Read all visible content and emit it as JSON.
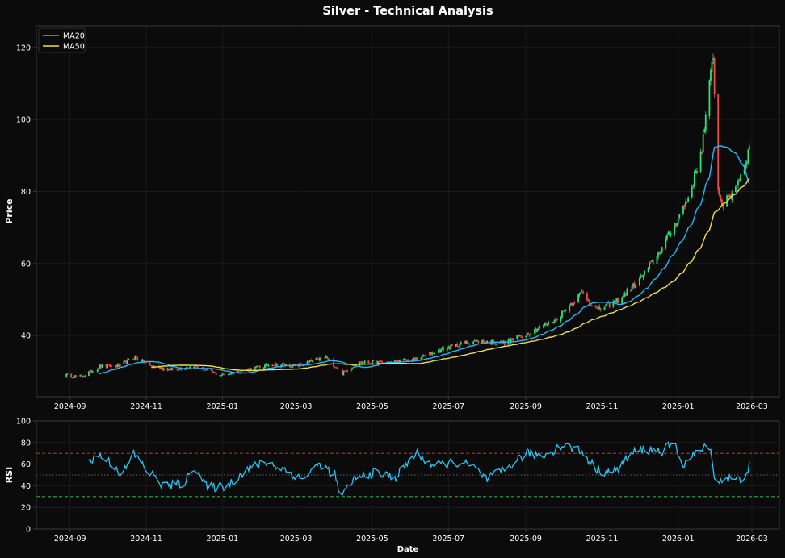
{
  "title": "Silver - Technical Analysis",
  "colors": {
    "background": "#0b0b0b",
    "axes_bg": "#0b0b0b",
    "frame": "#3a3a3a",
    "grid": "#1e1e1e",
    "text": "#ffffff",
    "up": "#2ee07a",
    "down": "#f04a4a",
    "ma20": "#29b6f6",
    "ma50": "#f0e040",
    "rsi": "#29c5f6",
    "overbought": "#e53935",
    "oversold": "#2ecc71",
    "midline": "#666666"
  },
  "chart_data": [
    {
      "type": "candlestick",
      "ylabel": "Price",
      "ylim": [
        23,
        126
      ],
      "yticks": [
        40,
        60,
        80,
        100,
        120
      ],
      "xlim": [
        "2024-08-05",
        "2026-03-23"
      ],
      "xticks": [
        "2024-09",
        "2024-11",
        "2025-01",
        "2025-03",
        "2025-05",
        "2025-07",
        "2025-09",
        "2025-11",
        "2026-01",
        "2026-03"
      ],
      "grid": true,
      "legend_position": "top-left",
      "date_range": [
        "2024-08-28",
        "2026-02-27"
      ],
      "price_anchors": [
        [
          "2024-08-28",
          29
        ],
        [
          "2024-09-10",
          28.5
        ],
        [
          "2024-09-25",
          31.5
        ],
        [
          "2024-10-10",
          31.5
        ],
        [
          "2024-10-23",
          34
        ],
        [
          "2024-11-05",
          31.5
        ],
        [
          "2024-11-20",
          30.5
        ],
        [
          "2024-12-10",
          31.5
        ],
        [
          "2024-12-30",
          29
        ],
        [
          "2025-01-20",
          30.5
        ],
        [
          "2025-02-10",
          32
        ],
        [
          "2025-03-01",
          31.5
        ],
        [
          "2025-03-25",
          34
        ],
        [
          "2025-04-07",
          29.5
        ],
        [
          "2025-04-20",
          32.5
        ],
        [
          "2025-05-15",
          32.5
        ],
        [
          "2025-06-05",
          33.5
        ],
        [
          "2025-06-25",
          36
        ],
        [
          "2025-07-20",
          38.5
        ],
        [
          "2025-08-15",
          38
        ],
        [
          "2025-09-05",
          41
        ],
        [
          "2025-09-25",
          44.5
        ],
        [
          "2025-10-16",
          52
        ],
        [
          "2025-10-28",
          47
        ],
        [
          "2025-11-15",
          50
        ],
        [
          "2025-11-30",
          55
        ],
        [
          "2025-12-15",
          62
        ],
        [
          "2025-12-31",
          72
        ],
        [
          "2026-01-10",
          79
        ],
        [
          "2026-01-20",
          92
        ],
        [
          "2026-01-29",
          118
        ],
        [
          "2026-02-02",
          80
        ],
        [
          "2026-02-06",
          76
        ],
        [
          "2026-02-14",
          80
        ],
        [
          "2026-02-22",
          86
        ],
        [
          "2026-02-27",
          92
        ]
      ],
      "series": [
        {
          "name": "MA20",
          "color": "#29b6f6"
        },
        {
          "name": "MA50",
          "color": "#f0e040"
        }
      ]
    },
    {
      "type": "line",
      "ylabel": "RSI",
      "xlabel": "Date",
      "ylim": [
        0,
        100
      ],
      "yticks": [
        0,
        20,
        40,
        60,
        80,
        100
      ],
      "levels": [
        {
          "value": 70,
          "color": "#e53935",
          "style": "dashed"
        },
        {
          "value": 50,
          "color": "#666666",
          "style": "dotted"
        },
        {
          "value": 30,
          "color": "#2ecc71",
          "style": "dashed"
        }
      ],
      "rsi_anchors": [
        [
          "2024-09-16",
          63
        ],
        [
          "2024-09-25",
          68
        ],
        [
          "2024-10-05",
          60
        ],
        [
          "2024-10-13",
          50
        ],
        [
          "2024-10-22",
          70
        ],
        [
          "2024-11-01",
          55
        ],
        [
          "2024-11-15",
          40
        ],
        [
          "2024-12-01",
          42
        ],
        [
          "2024-12-10",
          58
        ],
        [
          "2024-12-20",
          38
        ],
        [
          "2025-01-05",
          40
        ],
        [
          "2025-01-20",
          55
        ],
        [
          "2025-02-05",
          62
        ],
        [
          "2025-02-20",
          55
        ],
        [
          "2025-03-05",
          46
        ],
        [
          "2025-03-20",
          60
        ],
        [
          "2025-04-01",
          50
        ],
        [
          "2025-04-06",
          28
        ],
        [
          "2025-04-15",
          45
        ],
        [
          "2025-05-01",
          52
        ],
        [
          "2025-05-20",
          48
        ],
        [
          "2025-06-05",
          70
        ],
        [
          "2025-06-20",
          58
        ],
        [
          "2025-07-05",
          62
        ],
        [
          "2025-07-20",
          58
        ],
        [
          "2025-08-01",
          46
        ],
        [
          "2025-08-15",
          55
        ],
        [
          "2025-09-01",
          70
        ],
        [
          "2025-09-15",
          68
        ],
        [
          "2025-10-01",
          78
        ],
        [
          "2025-10-15",
          72
        ],
        [
          "2025-10-28",
          55
        ],
        [
          "2025-11-10",
          52
        ],
        [
          "2025-11-25",
          70
        ],
        [
          "2025-12-05",
          74
        ],
        [
          "2025-12-20",
          72
        ],
        [
          "2025-12-28",
          80
        ],
        [
          "2026-01-05",
          60
        ],
        [
          "2026-01-15",
          70
        ],
        [
          "2026-01-27",
          78
        ],
        [
          "2026-01-30",
          44
        ],
        [
          "2026-02-10",
          47
        ],
        [
          "2026-02-20",
          45
        ],
        [
          "2026-02-27",
          58
        ]
      ],
      "series": [
        {
          "name": "RSI",
          "color": "#29c5f6"
        }
      ]
    }
  ]
}
